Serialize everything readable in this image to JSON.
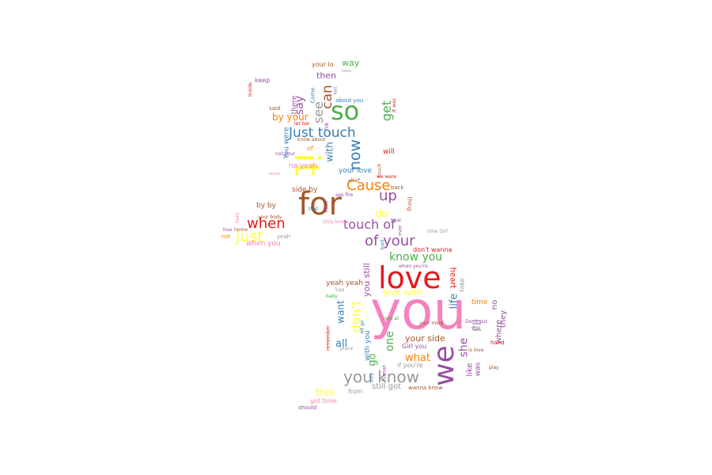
{
  "word_cloud": {
    "words": [
      {
        "text": "you",
        "color": "#f781bf"
      },
      {
        "text": "love",
        "color": "#e41a1c"
      },
      {
        "text": "for",
        "color": "#a65628"
      },
      {
        "text": "it",
        "color": "#ffff33"
      },
      {
        "text": "so",
        "color": "#4daf4a"
      },
      {
        "text": "we",
        "color": "#984ea3"
      },
      {
        "text": "you know",
        "color": "#999999"
      },
      {
        "text": "Just touch",
        "color": "#377eb8"
      },
      {
        "text": "Cause",
        "color": "#ff7f00"
      },
      {
        "text": "when",
        "color": "#e41a1c"
      },
      {
        "text": "just",
        "color": "#ffff33"
      },
      {
        "text": "up",
        "color": "#984ea3"
      },
      {
        "text": "touch of",
        "color": "#984ea3"
      },
      {
        "text": "of your",
        "color": "#984ea3"
      },
      {
        "text": "know you",
        "color": "#4daf4a"
      },
      {
        "text": "now",
        "color": "#377eb8"
      },
      {
        "text": "can",
        "color": "#a65628"
      },
      {
        "text": "see",
        "color": "#999999"
      },
      {
        "text": "get",
        "color": "#4daf4a"
      },
      {
        "text": "say",
        "color": "#984ea3"
      },
      {
        "text": "way",
        "color": "#4daf4a"
      },
      {
        "text": "then",
        "color": "#984ea3"
      },
      {
        "text": "by your",
        "color": "#ff7f00"
      },
      {
        "text": "with",
        "color": "#377eb8"
      },
      {
        "text": "don't",
        "color": "#ffff33"
      },
      {
        "text": "want",
        "color": "#377eb8"
      },
      {
        "text": "one",
        "color": "#4daf4a"
      },
      {
        "text": "go",
        "color": "#4daf4a"
      },
      {
        "text": "all",
        "color": "#377eb8"
      },
      {
        "text": "what",
        "color": "#ff7f00"
      },
      {
        "text": "she",
        "color": "#984ea3"
      },
      {
        "text": "life",
        "color": "#377eb8"
      },
      {
        "text": "I'll",
        "color": "#999999"
      },
      {
        "text": "this",
        "color": "#ffff33"
      },
      {
        "text": "still got",
        "color": "#999999"
      },
      {
        "text": "like",
        "color": "#984ea3"
      },
      {
        "text": "love with",
        "color": "#ffff33"
      },
      {
        "text": "your side",
        "color": "#a65628"
      },
      {
        "text": "you still",
        "color": "#984ea3"
      },
      {
        "text": "do",
        "color": "#ffff33"
      },
      {
        "text": "by by",
        "color": "#a65628"
      },
      {
        "text": "when you",
        "color": "#f781bf"
      },
      {
        "text": "your love",
        "color": "#377eb8"
      },
      {
        "text": "yeah yeah",
        "color": "#a65628"
      },
      {
        "text": "heart",
        "color": "#e41a1c"
      },
      {
        "text": "don't wanna",
        "color": "#e41a1c"
      },
      {
        "text": "with you",
        "color": "#377eb8"
      },
      {
        "text": "time",
        "color": "#ff7f00"
      },
      {
        "text": "no",
        "color": "#984ea3"
      },
      {
        "text": "they",
        "color": "#984ea3"
      },
      {
        "text": "where",
        "color": "#984ea3"
      },
      {
        "text": "was",
        "color": "#984ea3"
      },
      {
        "text": "You were",
        "color": "#377eb8"
      },
      {
        "text": "will",
        "color": "#e41a1c"
      },
      {
        "text": "there",
        "color": "#984ea3"
      },
      {
        "text": "side by",
        "color": "#a65628"
      },
      {
        "text": "na yeah",
        "color": "#f781bf"
      },
      {
        "text": "about you",
        "color": "#377eb8"
      },
      {
        "text": "keep",
        "color": "#984ea3"
      },
      {
        "text": "from",
        "color": "#999999"
      },
      {
        "text": "if you're",
        "color": "#999999"
      },
      {
        "text": "Girl you",
        "color": "#984ea3"
      },
      {
        "text": "back",
        "color": "#a65628"
      },
      {
        "text": "thing",
        "color": "#a65628"
      },
      {
        "text": "should",
        "color": "#984ea3"
      },
      {
        "text": "got time",
        "color": "#f781bf"
      },
      {
        "text": "wanna know",
        "color": "#a65628"
      },
      {
        "text": "take",
        "color": "#999999"
      },
      {
        "text": "Come",
        "color": "#377eb8"
      },
      {
        "text": "your lo",
        "color": "#a65628"
      },
      {
        "text": "said",
        "color": "#a65628"
      },
      {
        "text": "not",
        "color": "#ff7f00"
      },
      {
        "text": "here",
        "color": "#f781bf"
      },
      {
        "text": "that",
        "color": "#377eb8"
      },
      {
        "text": "yeah",
        "color": "#999999"
      },
      {
        "text": "baby",
        "color": "#4daf4a"
      },
      {
        "text": "kiss",
        "color": "#999999"
      },
      {
        "text": "remember",
        "color": "#e41a1c"
      },
      {
        "text": "place",
        "color": "#999999"
      },
      {
        "text": "hand",
        "color": "#e41a1c"
      },
      {
        "text": "play",
        "color": "#a65628"
      },
      {
        "text": "Only know",
        "color": "#f781bf"
      },
      {
        "text": "touch",
        "color": "#a65628"
      },
      {
        "text": "time Girl",
        "color": "#999999"
      },
      {
        "text": "your mind",
        "color": "#a65628"
      },
      {
        "text": "when you're",
        "color": "#984ea3"
      },
      {
        "text": "let go",
        "color": "#377eb8"
      },
      {
        "text": "home",
        "color": "#a65628"
      },
      {
        "text": "hue",
        "color": "#984ea3"
      },
      {
        "text": "your body",
        "color": "#a65628"
      },
      {
        "text": "have",
        "color": "#984ea3"
      },
      {
        "text": "see fire",
        "color": "#984ea3"
      },
      {
        "text": "we were",
        "color": "#e41a1c"
      },
      {
        "text": "all of",
        "color": "#a65628"
      },
      {
        "text": "it was",
        "color": "#e41a1c"
      },
      {
        "text": "let her",
        "color": "#e41a1c"
      },
      {
        "text": "know about",
        "color": "#a65628"
      },
      {
        "text": "not your",
        "color": "#984ea3"
      },
      {
        "text": "loved",
        "color": "#f781bf"
      },
      {
        "text": "eye",
        "color": "#984ea3"
      },
      {
        "text": "Don't put",
        "color": "#984ea3"
      },
      {
        "text": "soon",
        "color": "#999999"
      },
      {
        "text": "hurt",
        "color": "#984ea3"
      },
      {
        "text": "Inside",
        "color": "#e41a1c"
      },
      {
        "text": "human",
        "color": "#984ea3"
      },
      {
        "text": "only",
        "color": "#377eb8"
      },
      {
        "text": "hold",
        "color": "#377eb8"
      },
      {
        "text": "ever",
        "color": "#984ea3"
      },
      {
        "text": "hear",
        "color": "#984ea3"
      },
      {
        "text": "new at",
        "color": "#4daf4a"
      },
      {
        "text": "is love",
        "color": "#a65628"
      },
      {
        "text": "of",
        "color": "#ff7f00"
      },
      {
        "text": "na",
        "color": "#984ea3"
      }
    ]
  }
}
